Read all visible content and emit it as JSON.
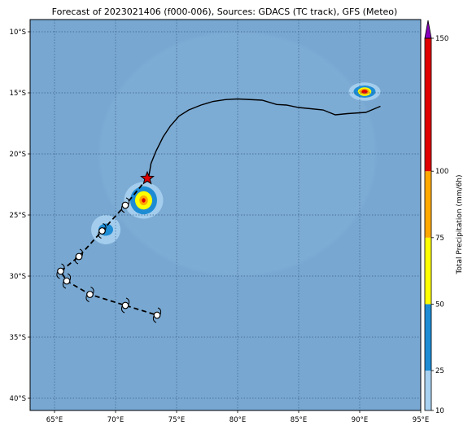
{
  "title": "Forecast of 2023021406 (f000-006), Sources: GDACS (TC track), GFS (Meteo)",
  "colors": {
    "ocean": "#78a8d2",
    "ocean_light": "#86b2d8",
    "grid": "#3a5f86",
    "track": "#000000",
    "star": "#e00000"
  },
  "map": {
    "lon_range": [
      63,
      95
    ],
    "lat_range": [
      -41,
      -9
    ],
    "lon_ticks": [
      {
        "value": 65,
        "label": "65°E"
      },
      {
        "value": 70,
        "label": "70°E"
      },
      {
        "value": 75,
        "label": "75°E"
      },
      {
        "value": 80,
        "label": "80°E"
      },
      {
        "value": 85,
        "label": "85°E"
      },
      {
        "value": 90,
        "label": "90°E"
      },
      {
        "value": 95,
        "label": "95°E"
      }
    ],
    "lat_ticks": [
      {
        "value": -10,
        "label": "10°S"
      },
      {
        "value": -15,
        "label": "15°S"
      },
      {
        "value": -20,
        "label": "20°S"
      },
      {
        "value": -25,
        "label": "25°S"
      },
      {
        "value": -30,
        "label": "30°S"
      },
      {
        "value": -35,
        "label": "35°S"
      },
      {
        "value": -40,
        "label": "40°S"
      }
    ],
    "grid": true,
    "past_track": [
      [
        91.7,
        -16.1
      ],
      [
        90.5,
        -16.6
      ],
      [
        89.0,
        -16.7
      ],
      [
        88.0,
        -16.8
      ],
      [
        87.0,
        -16.4
      ],
      [
        86.0,
        -16.3
      ],
      [
        85.0,
        -16.2
      ],
      [
        84.0,
        -16.0
      ],
      [
        83.2,
        -15.95
      ],
      [
        82.0,
        -15.6
      ],
      [
        80.0,
        -15.5
      ],
      [
        79.0,
        -15.55
      ],
      [
        78.0,
        -15.7
      ],
      [
        77.0,
        -16.0
      ],
      [
        76.0,
        -16.4
      ],
      [
        75.2,
        -16.9
      ],
      [
        74.5,
        -17.7
      ],
      [
        73.9,
        -18.6
      ],
      [
        73.3,
        -19.8
      ],
      [
        72.9,
        -20.8
      ],
      [
        72.7,
        -22.0
      ]
    ],
    "current_position": [
      72.6,
      -22.0
    ],
    "forecast_track": [
      [
        72.6,
        -22.0
      ],
      [
        70.8,
        -24.2
      ],
      [
        68.9,
        -26.3
      ],
      [
        67.0,
        -28.4
      ],
      [
        65.5,
        -29.6
      ],
      [
        66.0,
        -30.4
      ],
      [
        67.9,
        -31.5
      ],
      [
        70.8,
        -32.4
      ],
      [
        73.4,
        -33.2
      ]
    ],
    "forecast_points": [
      [
        70.8,
        -24.2
      ],
      [
        68.9,
        -26.3
      ],
      [
        67.0,
        -28.4
      ],
      [
        65.5,
        -29.6
      ],
      [
        66.0,
        -30.4
      ],
      [
        67.9,
        -31.5
      ],
      [
        70.8,
        -32.4
      ],
      [
        73.4,
        -33.2
      ]
    ],
    "precip_blobs": [
      {
        "lon": 72.3,
        "lat": -23.8,
        "levels": [
          {
            "value": 10,
            "rx": 1.6,
            "ry": 1.5
          },
          {
            "value": 25,
            "rx": 1.1,
            "ry": 1.15
          },
          {
            "value": 50,
            "rx": 0.7,
            "ry": 0.75
          },
          {
            "value": 75,
            "rx": 0.35,
            "ry": 0.4
          },
          {
            "value": 100,
            "rx": 0.15,
            "ry": 0.18
          }
        ]
      },
      {
        "lon": 69.2,
        "lat": -26.2,
        "levels": [
          {
            "value": 10,
            "rx": 1.2,
            "ry": 1.2
          },
          {
            "value": 25,
            "rx": 0.6,
            "ry": 0.5
          }
        ]
      },
      {
        "lon": 90.4,
        "lat": -14.9,
        "levels": [
          {
            "value": 10,
            "rx": 1.3,
            "ry": 0.75
          },
          {
            "value": 25,
            "rx": 0.9,
            "ry": 0.5
          },
          {
            "value": 50,
            "rx": 0.55,
            "ry": 0.35
          },
          {
            "value": 75,
            "rx": 0.4,
            "ry": 0.25
          },
          {
            "value": 100,
            "rx": 0.25,
            "ry": 0.15
          }
        ]
      }
    ]
  },
  "colorbar": {
    "label": "Total Precipitation (mm/6h)",
    "min": 10,
    "max": 150,
    "ticks": [
      10,
      25,
      50,
      75,
      100,
      150
    ],
    "bands": [
      {
        "from": 10,
        "to": 25,
        "color": "#a8d0f0"
      },
      {
        "from": 25,
        "to": 50,
        "color": "#1e8cd4"
      },
      {
        "from": 50,
        "to": 75,
        "color": "#ffff00"
      },
      {
        "from": 75,
        "to": 100,
        "color": "#ffa800"
      },
      {
        "from": 100,
        "to": 150,
        "color": "#e00000"
      }
    ],
    "extend_color": "#8800bb"
  }
}
